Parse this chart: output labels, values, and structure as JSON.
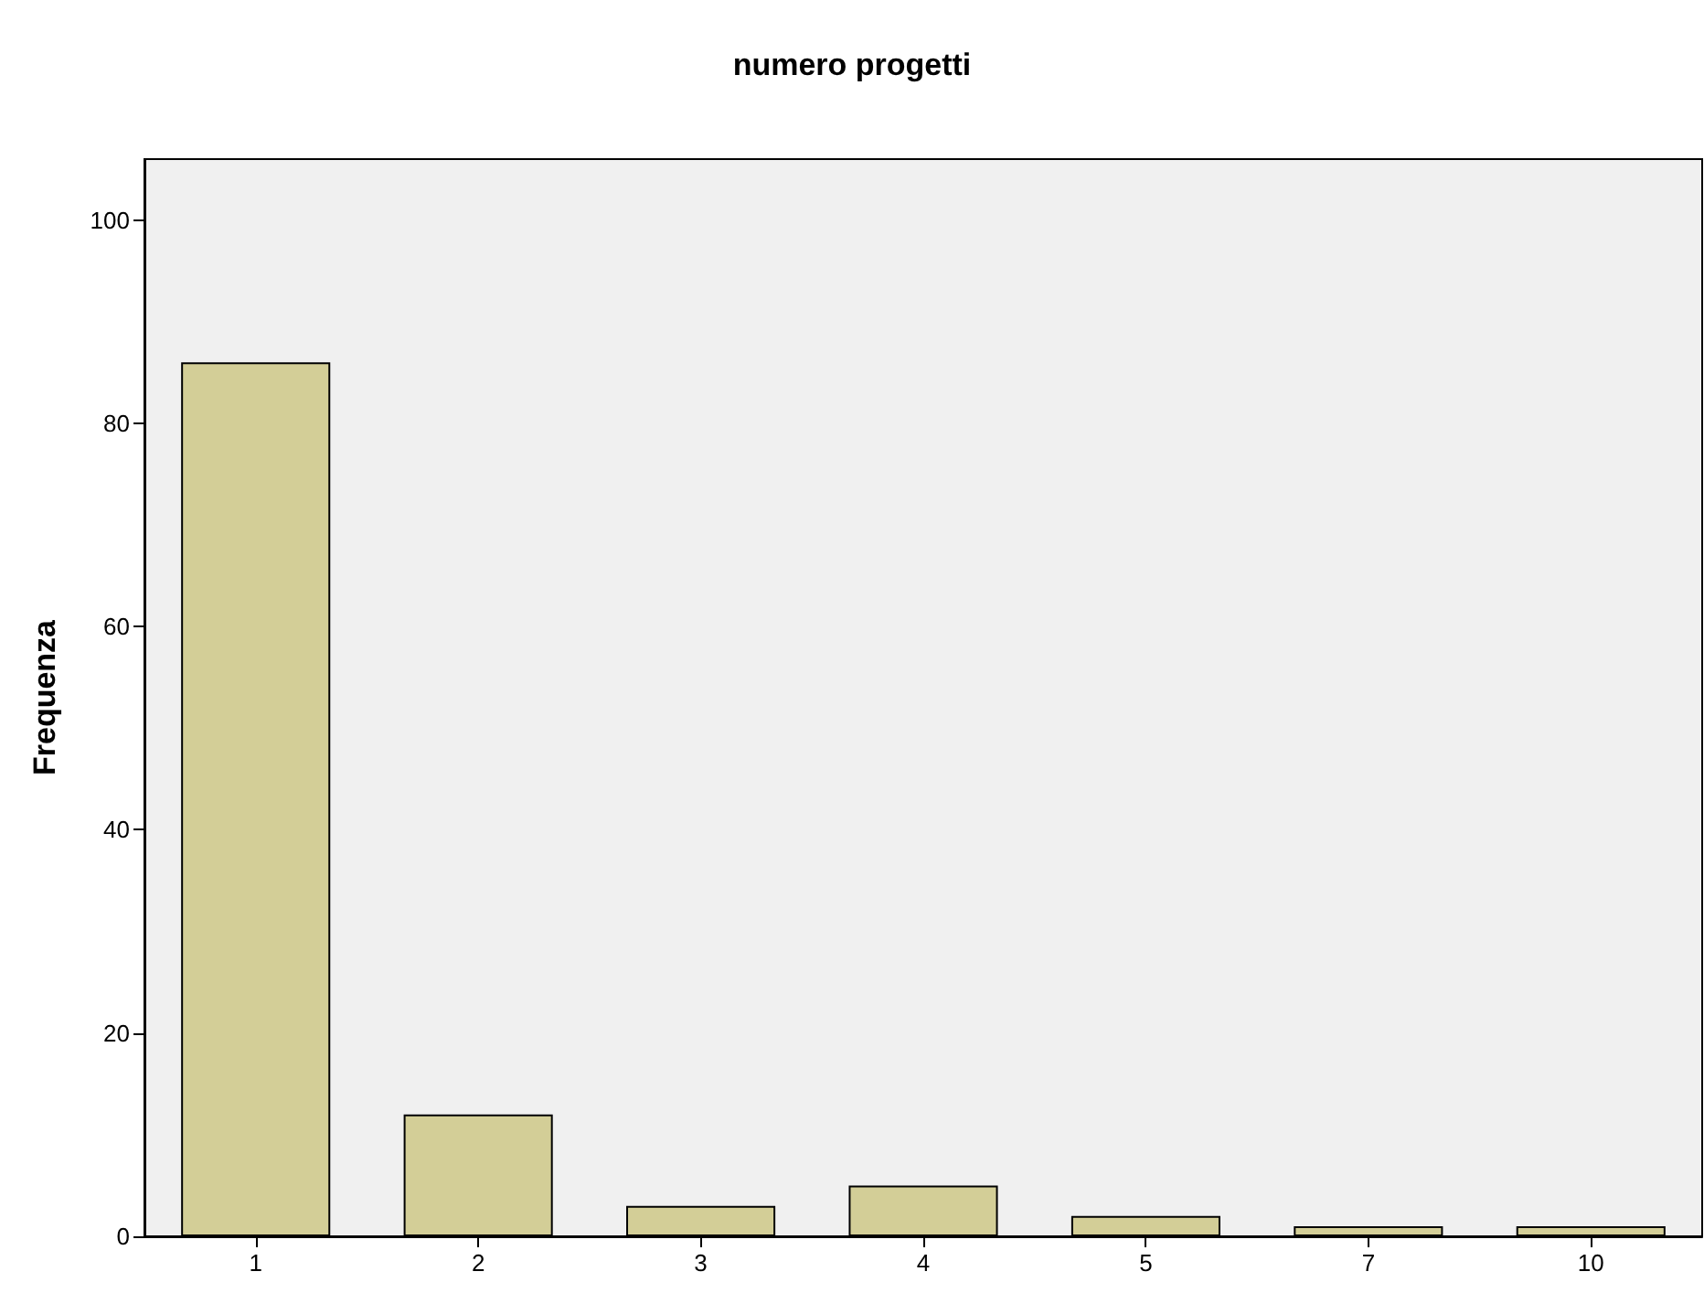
{
  "chart_data": {
    "type": "bar",
    "title": "numero progetti",
    "ylabel": "Frequenza",
    "categories": [
      "1",
      "2",
      "3",
      "4",
      "5",
      "7",
      "10"
    ],
    "values": [
      86,
      12,
      3,
      5,
      2,
      1,
      1
    ],
    "color": "#d3ce97",
    "ylim": [
      0,
      106
    ],
    "yticks": [
      0,
      20,
      40,
      60,
      80,
      100
    ],
    "grid": false
  }
}
